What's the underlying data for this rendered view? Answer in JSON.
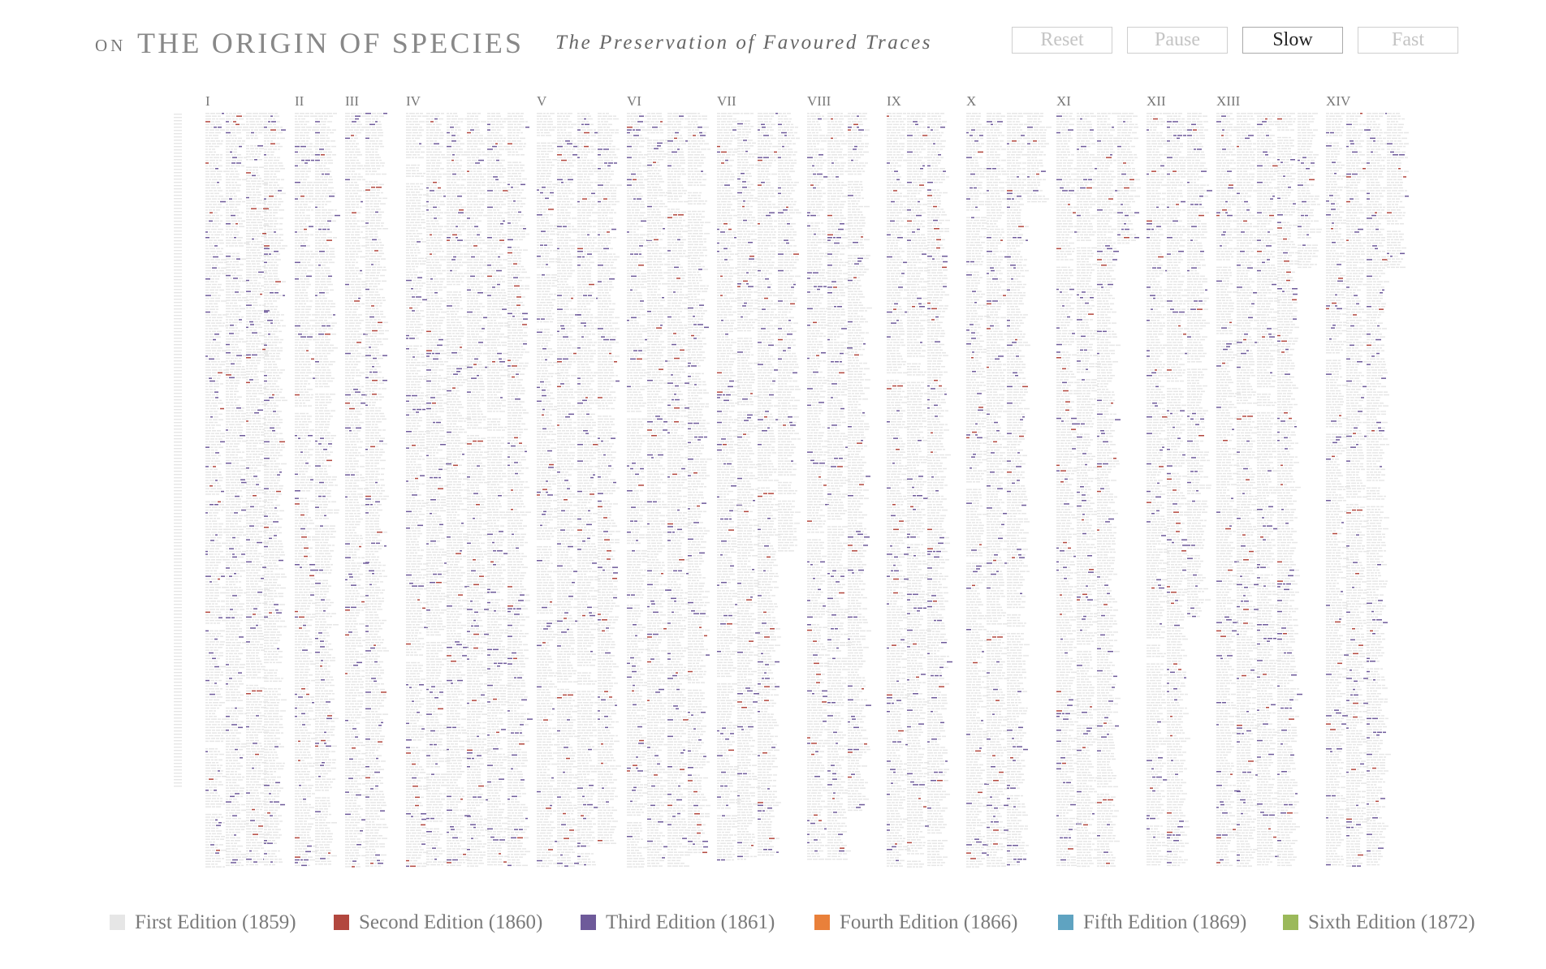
{
  "header": {
    "title_prefix": "ON",
    "title": "THE ORIGIN OF SPECIES",
    "subtitle": "The Preservation of Favoured Traces"
  },
  "controls": [
    {
      "label": "Reset",
      "active": false
    },
    {
      "label": "Pause",
      "active": false
    },
    {
      "label": "Slow",
      "active": true
    },
    {
      "label": "Fast",
      "active": false
    }
  ],
  "chapters": [
    "I",
    "II",
    "III",
    "IV",
    "V",
    "VI",
    "VII",
    "VIII",
    "IX",
    "X",
    "XI",
    "XII",
    "XIII",
    "XIV"
  ],
  "editions": [
    {
      "label": "First Edition (1859)",
      "color": "#e6e6e6"
    },
    {
      "label": "Second Edition (1860)",
      "color": "#b2473e"
    },
    {
      "label": "Third Edition (1861)",
      "color": "#6e5a9a"
    },
    {
      "label": "Fourth Edition (1866)",
      "color": "#e9803a"
    },
    {
      "label": "Fifth Edition (1869)",
      "color": "#5fa3c1"
    },
    {
      "label": "Sixth Edition (1872)",
      "color": "#9bb95a"
    }
  ]
}
